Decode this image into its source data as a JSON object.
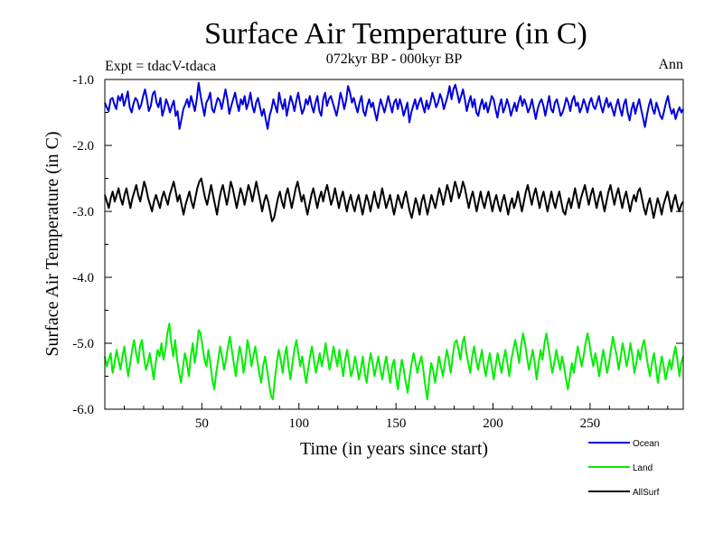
{
  "chart_data": {
    "type": "line",
    "title": "Surface Air Temperature (in C)",
    "subtitle": "072kyr BP - 000kyr BP",
    "experiment_label": "Expt = tdacV-tdaca",
    "season_label": "Ann",
    "xlabel": "Time (in years since start)",
    "ylabel": "Surface Air Temperature (in C)",
    "xlim": [
      0,
      298
    ],
    "ylim": [
      -6.0,
      -1.0
    ],
    "x_ticks": [
      50,
      100,
      150,
      200,
      250
    ],
    "x_tick_labels": [
      "50",
      "100",
      "150",
      "200",
      "250"
    ],
    "y_ticks": [
      -1.0,
      -2.0,
      -3.0,
      -4.0,
      -5.0,
      -6.0
    ],
    "y_tick_labels": [
      "-1.0",
      "-2.0",
      "-3.0",
      "-4.0",
      "-5.0",
      "-6.0"
    ],
    "legend_position": "bottom-right",
    "series": [
      {
        "name": "Ocean",
        "color": "#0000dd",
        "values": [
          -1.35,
          -1.42,
          -1.48,
          -1.3,
          -1.28,
          -1.38,
          -1.45,
          -1.25,
          -1.32,
          -1.22,
          -1.4,
          -1.3,
          -1.18,
          -1.42,
          -1.5,
          -1.36,
          -1.28,
          -1.32,
          -1.45,
          -1.38,
          -1.25,
          -1.15,
          -1.3,
          -1.48,
          -1.4,
          -1.22,
          -1.18,
          -1.35,
          -1.42,
          -1.28,
          -1.55,
          -1.45,
          -1.3,
          -1.38,
          -1.5,
          -1.4,
          -1.32,
          -1.55,
          -1.48,
          -1.75,
          -1.6,
          -1.45,
          -1.38,
          -1.3,
          -1.42,
          -1.25,
          -1.36,
          -1.48,
          -1.3,
          -1.05,
          -1.25,
          -1.4,
          -1.55,
          -1.35,
          -1.3,
          -1.2,
          -1.45,
          -1.5,
          -1.38,
          -1.28,
          -1.32,
          -1.45,
          -1.3,
          -1.15,
          -1.3,
          -1.52,
          -1.4,
          -1.3,
          -1.2,
          -1.35,
          -1.48,
          -1.3,
          -1.38,
          -1.25,
          -1.45,
          -1.35,
          -1.2,
          -1.4,
          -1.5,
          -1.35,
          -1.28,
          -1.42,
          -1.55,
          -1.45,
          -1.6,
          -1.75,
          -1.55,
          -1.45,
          -1.3,
          -1.4,
          -1.5,
          -1.2,
          -1.35,
          -1.45,
          -1.3,
          -1.55,
          -1.4,
          -1.25,
          -1.35,
          -1.48,
          -1.32,
          -1.2,
          -1.38,
          -1.52,
          -1.45,
          -1.3,
          -1.38,
          -1.25,
          -1.4,
          -1.5,
          -1.35,
          -1.25,
          -1.48,
          -1.55,
          -1.3,
          -1.2,
          -1.4,
          -1.3,
          -1.25,
          -1.35,
          -1.45,
          -1.55,
          -1.4,
          -1.2,
          -1.3,
          -1.45,
          -1.32,
          -1.1,
          -1.2,
          -1.35,
          -1.28,
          -1.4,
          -1.5,
          -1.35,
          -1.25,
          -1.48,
          -1.55,
          -1.4,
          -1.3,
          -1.42,
          -1.35,
          -1.5,
          -1.62,
          -1.45,
          -1.3,
          -1.4,
          -1.5,
          -1.38,
          -1.25,
          -1.38,
          -1.5,
          -1.35,
          -1.3,
          -1.45,
          -1.3,
          -1.4,
          -1.55,
          -1.45,
          -1.35,
          -1.65,
          -1.5,
          -1.4,
          -1.3,
          -1.45,
          -1.35,
          -1.28,
          -1.4,
          -1.5,
          -1.32,
          -1.45,
          -1.35,
          -1.2,
          -1.3,
          -1.42,
          -1.35,
          -1.22,
          -1.3,
          -1.45,
          -1.35,
          -1.25,
          -1.1,
          -1.3,
          -1.15,
          -1.08,
          -1.2,
          -1.35,
          -1.25,
          -1.15,
          -1.3,
          -1.48,
          -1.35,
          -1.25,
          -1.42,
          -1.3,
          -1.5,
          -1.55,
          -1.4,
          -1.3,
          -1.45,
          -1.35,
          -1.5,
          -1.38,
          -1.25,
          -1.3,
          -1.45,
          -1.58,
          -1.4,
          -1.3,
          -1.5,
          -1.42,
          -1.3,
          -1.4,
          -1.55,
          -1.45,
          -1.35,
          -1.48,
          -1.35,
          -1.25,
          -1.4,
          -1.3,
          -1.38,
          -1.5,
          -1.42,
          -1.3,
          -1.45,
          -1.6,
          -1.45,
          -1.35,
          -1.3,
          -1.4,
          -1.55,
          -1.4,
          -1.25,
          -1.45,
          -1.5,
          -1.35,
          -1.3,
          -1.42,
          -1.55,
          -1.5,
          -1.4,
          -1.28,
          -1.35,
          -1.48,
          -1.32,
          -1.25,
          -1.4,
          -1.35,
          -1.5,
          -1.42,
          -1.3,
          -1.38,
          -1.5,
          -1.35,
          -1.28,
          -1.4,
          -1.45,
          -1.35,
          -1.25,
          -1.4,
          -1.5,
          -1.38,
          -1.28,
          -1.42,
          -1.35,
          -1.45,
          -1.55,
          -1.4,
          -1.3,
          -1.45,
          -1.55,
          -1.38,
          -1.3,
          -1.5,
          -1.62,
          -1.45,
          -1.35,
          -1.52,
          -1.4,
          -1.3,
          -1.45,
          -1.58,
          -1.72,
          -1.55,
          -1.4,
          -1.3,
          -1.45,
          -1.52,
          -1.35,
          -1.45,
          -1.55,
          -1.6,
          -1.48,
          -1.35,
          -1.25,
          -1.42,
          -1.52,
          -1.45,
          -1.6,
          -1.5,
          -1.42,
          -1.5,
          -1.45
        ]
      },
      {
        "name": "Land",
        "color": "#00ee00",
        "values": [
          -5.2,
          -5.35,
          -5.25,
          -5.15,
          -5.45,
          -5.3,
          -5.1,
          -5.25,
          -5.4,
          -5.2,
          -5.05,
          -5.3,
          -5.5,
          -5.3,
          -5.1,
          -4.95,
          -5.15,
          -5.3,
          -5.05,
          -4.95,
          -5.2,
          -5.4,
          -5.3,
          -5.15,
          -5.35,
          -5.55,
          -5.3,
          -5.1,
          -5.2,
          -5.0,
          -5.25,
          -5.1,
          -4.85,
          -4.7,
          -5.0,
          -5.2,
          -4.95,
          -5.25,
          -5.45,
          -5.6,
          -5.35,
          -5.15,
          -5.3,
          -5.5,
          -5.2,
          -5.0,
          -5.3,
          -5.1,
          -4.8,
          -4.85,
          -5.05,
          -5.25,
          -5.35,
          -5.1,
          -5.3,
          -5.55,
          -5.7,
          -5.45,
          -5.25,
          -5.05,
          -5.2,
          -5.4,
          -5.25,
          -5.05,
          -4.9,
          -5.1,
          -5.3,
          -5.5,
          -5.25,
          -5.05,
          -5.2,
          -5.45,
          -5.25,
          -4.95,
          -5.1,
          -5.35,
          -5.2,
          -5.05,
          -5.25,
          -5.45,
          -5.6,
          -5.35,
          -5.2,
          -5.4,
          -5.6,
          -5.8,
          -5.85,
          -5.55,
          -5.3,
          -5.1,
          -5.25,
          -5.45,
          -5.2,
          -5.05,
          -5.35,
          -5.55,
          -5.3,
          -5.1,
          -4.95,
          -5.15,
          -5.35,
          -5.2,
          -5.4,
          -5.6,
          -5.4,
          -5.2,
          -5.05,
          -5.25,
          -5.45,
          -5.3,
          -5.15,
          -5.35,
          -5.2,
          -5.0,
          -5.2,
          -5.4,
          -5.25,
          -5.05,
          -5.2,
          -5.35,
          -5.1,
          -5.3,
          -5.5,
          -5.25,
          -5.1,
          -5.3,
          -5.5,
          -5.4,
          -5.2,
          -5.35,
          -5.55,
          -5.4,
          -5.2,
          -5.45,
          -5.6,
          -5.35,
          -5.15,
          -5.3,
          -5.5,
          -5.35,
          -5.2,
          -5.4,
          -5.55,
          -5.35,
          -5.2,
          -5.4,
          -5.6,
          -5.35,
          -5.25,
          -5.5,
          -5.7,
          -5.45,
          -5.25,
          -5.4,
          -5.6,
          -5.75,
          -5.5,
          -5.3,
          -5.15,
          -5.3,
          -5.45,
          -5.3,
          -5.2,
          -5.4,
          -5.65,
          -5.85,
          -5.55,
          -5.3,
          -5.4,
          -5.6,
          -5.4,
          -5.2,
          -5.35,
          -5.5,
          -5.3,
          -5.1,
          -5.25,
          -5.45,
          -5.2,
          -5.0,
          -4.95,
          -5.1,
          -5.25,
          -5.0,
          -4.9,
          -5.15,
          -5.3,
          -5.45,
          -5.2,
          -5.05,
          -5.25,
          -5.4,
          -5.25,
          -5.1,
          -5.35,
          -5.5,
          -5.3,
          -5.15,
          -5.35,
          -5.55,
          -5.35,
          -5.15,
          -5.3,
          -5.45,
          -5.25,
          -5.1,
          -5.3,
          -5.5,
          -5.25,
          -5.1,
          -4.95,
          -5.1,
          -5.3,
          -5.05,
          -4.85,
          -5.0,
          -5.2,
          -5.4,
          -5.25,
          -5.1,
          -5.3,
          -5.55,
          -5.3,
          -5.1,
          -5.25,
          -5.0,
          -4.85,
          -5.05,
          -5.25,
          -5.45,
          -5.3,
          -5.1,
          -5.25,
          -5.4,
          -5.2,
          -5.35,
          -5.55,
          -5.7,
          -5.5,
          -5.3,
          -5.45,
          -5.25,
          -5.05,
          -5.2,
          -5.35,
          -5.2,
          -5.0,
          -4.85,
          -5.0,
          -5.2,
          -5.35,
          -5.15,
          -5.3,
          -5.5,
          -5.3,
          -5.1,
          -5.25,
          -5.45,
          -5.3,
          -5.1,
          -4.9,
          -5.05,
          -5.2,
          -5.4,
          -5.2,
          -5.0,
          -5.15,
          -5.35,
          -5.2,
          -5.0,
          -5.2,
          -5.45,
          -5.3,
          -5.1,
          -5.25,
          -5.05,
          -4.95,
          -5.15,
          -5.35,
          -5.5,
          -5.3,
          -5.15,
          -5.35,
          -5.6,
          -5.4,
          -5.2,
          -5.35,
          -5.55,
          -5.4,
          -5.25,
          -5.4,
          -5.2,
          -5.05,
          -5.25,
          -5.5,
          -5.3,
          -5.2
        ]
      },
      {
        "name": "AllSurf",
        "color": "#000000",
        "values": [
          -2.75,
          -2.85,
          -2.95,
          -2.8,
          -2.7,
          -2.85,
          -2.75,
          -2.65,
          -2.8,
          -2.9,
          -2.75,
          -2.65,
          -2.8,
          -2.95,
          -2.8,
          -2.7,
          -2.6,
          -2.75,
          -2.85,
          -2.7,
          -2.55,
          -2.65,
          -2.8,
          -2.9,
          -3.0,
          -2.85,
          -2.75,
          -2.85,
          -2.95,
          -2.8,
          -2.7,
          -2.8,
          -2.9,
          -2.75,
          -2.65,
          -2.55,
          -2.7,
          -2.85,
          -2.75,
          -2.9,
          -3.05,
          -2.9,
          -2.8,
          -2.7,
          -2.85,
          -2.95,
          -2.8,
          -2.65,
          -2.55,
          -2.5,
          -2.65,
          -2.8,
          -2.9,
          -2.75,
          -2.6,
          -2.75,
          -2.9,
          -3.05,
          -2.85,
          -2.7,
          -2.6,
          -2.75,
          -2.9,
          -2.75,
          -2.55,
          -2.65,
          -2.8,
          -2.95,
          -2.8,
          -2.65,
          -2.75,
          -2.9,
          -2.75,
          -2.6,
          -2.7,
          -2.85,
          -2.7,
          -2.55,
          -2.7,
          -2.85,
          -3.0,
          -2.85,
          -2.75,
          -2.85,
          -3.0,
          -3.15,
          -3.1,
          -2.95,
          -2.8,
          -2.7,
          -2.85,
          -2.95,
          -2.75,
          -2.65,
          -2.8,
          -2.95,
          -2.8,
          -2.65,
          -2.55,
          -2.7,
          -2.85,
          -2.75,
          -2.9,
          -3.05,
          -2.9,
          -2.75,
          -2.65,
          -2.8,
          -2.95,
          -2.8,
          -2.7,
          -2.85,
          -2.7,
          -2.6,
          -2.75,
          -2.9,
          -2.8,
          -2.65,
          -2.8,
          -2.95,
          -2.8,
          -2.7,
          -2.85,
          -3.0,
          -2.85,
          -2.75,
          -2.9,
          -3.0,
          -2.85,
          -2.75,
          -2.9,
          -3.05,
          -2.9,
          -2.75,
          -2.85,
          -3.0,
          -2.85,
          -2.7,
          -2.85,
          -2.95,
          -2.8,
          -2.65,
          -2.8,
          -2.95,
          -2.85,
          -2.75,
          -2.9,
          -3.05,
          -2.9,
          -2.75,
          -2.85,
          -2.95,
          -2.8,
          -2.7,
          -2.85,
          -3.0,
          -3.1,
          -2.95,
          -2.8,
          -2.9,
          -3.05,
          -2.85,
          -2.75,
          -2.9,
          -3.05,
          -2.9,
          -2.75,
          -2.85,
          -2.95,
          -2.8,
          -2.65,
          -2.75,
          -2.9,
          -2.75,
          -2.6,
          -2.7,
          -2.85,
          -2.7,
          -2.55,
          -2.65,
          -2.8,
          -2.7,
          -2.55,
          -2.65,
          -2.8,
          -2.95,
          -2.8,
          -2.7,
          -2.85,
          -3.0,
          -2.85,
          -2.7,
          -2.85,
          -2.95,
          -2.8,
          -2.7,
          -2.85,
          -3.0,
          -2.85,
          -2.75,
          -2.9,
          -3.0,
          -2.85,
          -2.75,
          -2.9,
          -3.05,
          -2.9,
          -2.8,
          -2.95,
          -2.85,
          -2.7,
          -2.85,
          -3.0,
          -2.85,
          -2.7,
          -2.6,
          -2.75,
          -2.9,
          -2.75,
          -2.65,
          -2.8,
          -2.95,
          -2.8,
          -2.7,
          -2.85,
          -3.0,
          -2.85,
          -2.7,
          -2.85,
          -2.95,
          -2.8,
          -2.7,
          -2.85,
          -3.0,
          -3.05,
          -2.9,
          -2.8,
          -2.95,
          -2.8,
          -2.65,
          -2.8,
          -2.95,
          -2.8,
          -2.7,
          -2.6,
          -2.75,
          -2.9,
          -2.75,
          -2.65,
          -2.8,
          -2.95,
          -2.8,
          -2.7,
          -2.85,
          -3.0,
          -2.85,
          -2.7,
          -2.6,
          -2.75,
          -2.9,
          -2.75,
          -2.65,
          -2.8,
          -2.95,
          -2.8,
          -2.7,
          -2.85,
          -3.0,
          -2.85,
          -2.75,
          -2.85,
          -2.7,
          -2.65,
          -2.8,
          -2.95,
          -3.05,
          -2.9,
          -2.8,
          -2.95,
          -3.1,
          -2.95,
          -2.8,
          -2.9,
          -3.05,
          -2.9,
          -2.8,
          -2.7,
          -2.85,
          -3.0,
          -2.85,
          -2.75,
          -2.9,
          -3.0,
          -2.9,
          -2.85
        ]
      }
    ]
  }
}
